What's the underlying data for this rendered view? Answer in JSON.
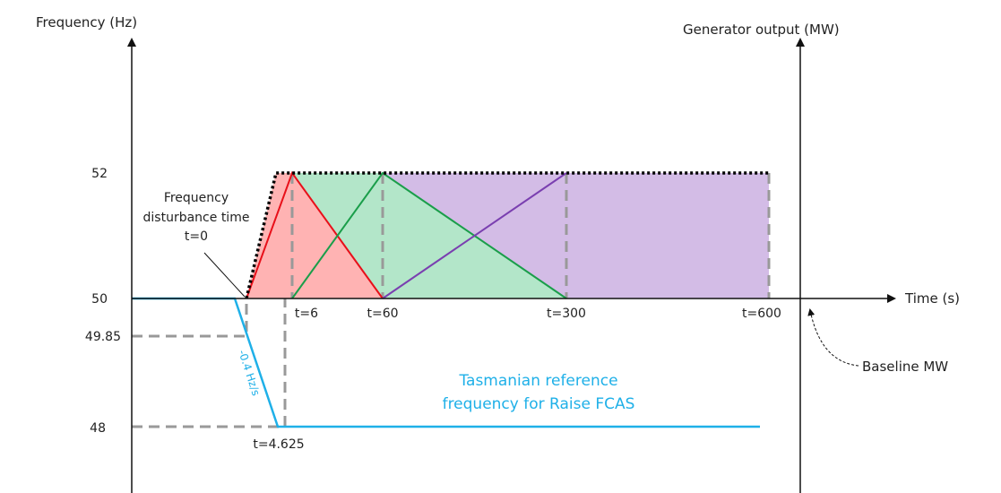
{
  "left_axis": {
    "title": "Frequency (Hz)",
    "ticks": [
      "52",
      "50",
      "49.85",
      "48"
    ]
  },
  "right_axis": {
    "title": "Generator output (MW)"
  },
  "time_axis": {
    "title": "Time (s)",
    "ticks": [
      "t=6",
      "t=60",
      "t=300",
      "t=600"
    ]
  },
  "annotations": {
    "disturbance": [
      "Frequency",
      "disturbance time",
      "t=0"
    ],
    "time_low": "t=4.625",
    "rate": "-0.4 Hz/s",
    "reference": [
      "Tasmanian reference",
      "frequency for Raise FCAS"
    ],
    "baseline": "Baseline MW"
  }
}
